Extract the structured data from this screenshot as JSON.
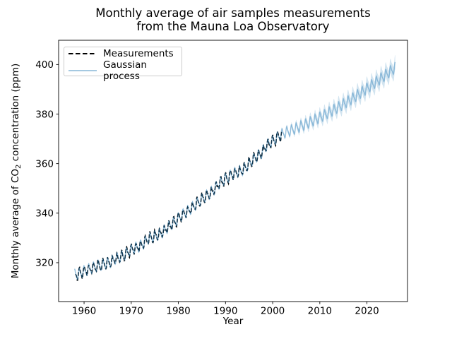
{
  "figure": {
    "title_line1": "Monthly average of air samples measurements",
    "title_line2": "from the Mauna Loa Observatory",
    "xlabel": "Year",
    "ylabel_pre": "Monthly average of CO",
    "ylabel_sub": "2",
    "ylabel_post": " concentration (ppm)"
  },
  "colors": {
    "measurements": "#000000",
    "gp_line": "#1f77b4",
    "spine": "#000000",
    "legend_border": "#cccccc"
  },
  "chart_data": {
    "type": "line",
    "title": "Monthly average of air samples measurements from the Mauna Loa Observatory",
    "xlabel": "Year",
    "ylabel": "Monthly average of CO2 concentration (ppm)",
    "xlim": [
      1954.6,
      2028.6
    ],
    "ylim": [
      304.3,
      409.8
    ],
    "xticks": [
      1960,
      1970,
      1980,
      1990,
      2000,
      2010,
      2020
    ],
    "yticks": [
      320,
      340,
      360,
      380,
      400
    ],
    "grid": false,
    "legend_position": "upper left",
    "seasonal": {
      "a1": 1.9,
      "p1": 1.35,
      "a2": 0.6,
      "p2": 2.5
    },
    "series": [
      {
        "name": "Measurements",
        "color": "#000000",
        "linestyle": "dashed",
        "x_start": 1958.21,
        "x_end": 2001.96,
        "sampling": "monthly",
        "annual_trend_start_year": 1958,
        "annual_trend": [
          315.3,
          315.98,
          316.91,
          317.64,
          318.45,
          318.99,
          319.62,
          320.04,
          321.37,
          322.18,
          323.05,
          324.62,
          325.68,
          326.32,
          327.46,
          329.68,
          330.19,
          331.12,
          332.03,
          333.84,
          335.41,
          336.84,
          338.76,
          340.12,
          341.48,
          343.15,
          344.85,
          346.35,
          347.61,
          349.31,
          351.69,
          353.2,
          354.45,
          355.7,
          356.54,
          357.21,
          358.96,
          360.97,
          362.74,
          363.88,
          366.84,
          368.54,
          369.71,
          371.32
        ],
        "noise": {
          "amps": [
            0.35,
            0.25
          ],
          "freqs": [
            0.81,
            2.9
          ],
          "phases": [
            2.0,
            0.7
          ]
        }
      },
      {
        "name": "Gaussian process",
        "color": "#1f77b4",
        "alpha": 0.4,
        "band_alpha": 0.2,
        "linestyle": "solid",
        "x_start": 1958.0,
        "x_end": 2026.0,
        "n_points": 1000,
        "annual_trend_start_year": 1958,
        "annual_trend": [
          315.3,
          315.98,
          316.91,
          317.64,
          318.45,
          318.99,
          319.62,
          320.04,
          321.37,
          322.18,
          323.05,
          324.62,
          325.68,
          326.32,
          327.46,
          329.68,
          330.19,
          331.12,
          332.03,
          333.84,
          335.41,
          336.84,
          338.76,
          340.12,
          341.48,
          343.15,
          344.85,
          346.35,
          347.61,
          349.31,
          351.69,
          353.2,
          354.45,
          355.7,
          356.54,
          357.21,
          358.96,
          360.97,
          362.74,
          363.88,
          366.84,
          368.54,
          369.71,
          371.32,
          372.4,
          373.1,
          373.85,
          374.65,
          375.45,
          376.3,
          377.2,
          378.1,
          379.1,
          380.1,
          381.15,
          382.25,
          383.4,
          384.55,
          385.75,
          387.0,
          388.3,
          389.6,
          390.95,
          392.3,
          393.7,
          395.1,
          396.55,
          398.0,
          399.5
        ],
        "sigma": {
          "base": 0.5,
          "growth": 2.7,
          "tau": 10,
          "start_year": 2002
        }
      }
    ]
  }
}
